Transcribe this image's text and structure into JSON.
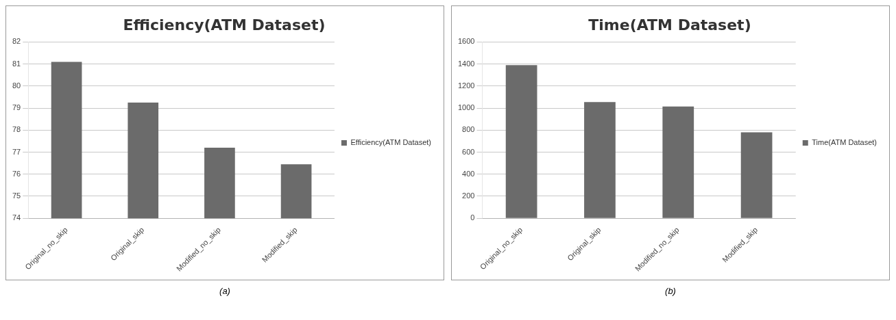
{
  "chart_data": [
    {
      "type": "bar",
      "title": "Efficiency(ATM Dataset)",
      "categories": [
        "Original_no_skip",
        "Original_skip",
        "Modified_no_skip",
        "Modified_skip"
      ],
      "series": [
        {
          "name": "Efficiency(ATM Dataset)",
          "color": "#6b6b6b",
          "values": [
            81.1,
            79.25,
            77.2,
            76.45
          ]
        }
      ],
      "ylim": [
        74,
        82
      ],
      "yticks": [
        74,
        75,
        76,
        77,
        78,
        79,
        80,
        81,
        82
      ],
      "grid": "y",
      "legend": "right",
      "annotations": [
        "(a)"
      ]
    },
    {
      "type": "bar",
      "title": "Time(ATM Dataset)",
      "categories": [
        "Original_no_skip",
        "Original_skip",
        "Modified_no_skip",
        "Modified_skip"
      ],
      "series": [
        {
          "name": "Time(ATM Dataset)",
          "color": "#6b6b6b",
          "values": [
            1390,
            1055,
            1015,
            780
          ]
        }
      ],
      "ylim": [
        0,
        1600
      ],
      "yticks": [
        0,
        200,
        400,
        600,
        800,
        1000,
        1200,
        1400,
        1600
      ],
      "grid": "y",
      "legend": "right",
      "annotations": [
        "(b)"
      ]
    }
  ]
}
